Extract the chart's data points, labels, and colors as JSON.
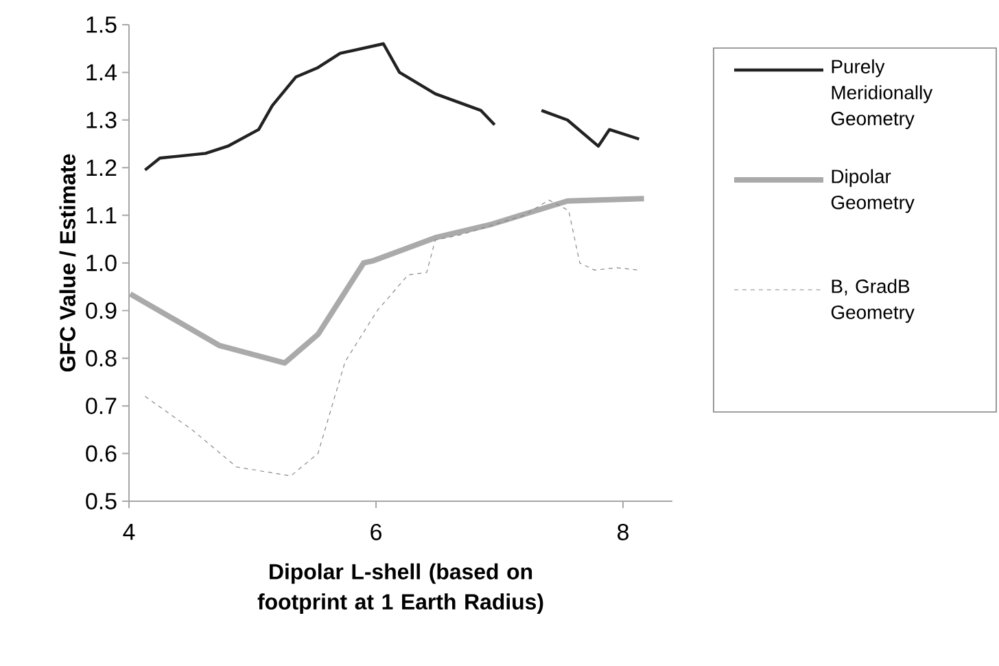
{
  "chart_data": {
    "type": "line",
    "xlabel": "Dipolar L-shell (based on footprint at 1 Earth Radius)",
    "ylabel": "GFC Value / Estimate",
    "xlim": [
      4,
      8.4
    ],
    "xticks": [
      4,
      6,
      8
    ],
    "ylim": [
      0.5,
      1.5
    ],
    "yticks": [
      0.5,
      0.6,
      0.7,
      0.8,
      0.9,
      {
        "value": 1.0,
        "label": "1.0"
      },
      1.1,
      1.2,
      1.3,
      1.4,
      1.5
    ],
    "grid": false,
    "legend": "right",
    "marker": "none",
    "series": [
      {
        "name": "Purely Meridionally Geometry",
        "color": "#222222",
        "line_style": "solid",
        "x": [
          4.13,
          4.25,
          4.62,
          4.8,
          5.05,
          5.16,
          5.35,
          5.53,
          5.71,
          6.06,
          6.19,
          6.48,
          6.85,
          6.96,
          7.15,
          7.34,
          7.55,
          7.8,
          7.89,
          8.13
        ],
        "values": [
          1.195,
          1.22,
          1.23,
          1.245,
          1.28,
          1.33,
          1.39,
          1.41,
          1.44,
          1.46,
          1.4,
          1.355,
          1.32,
          1.29,
          null,
          1.32,
          1.3,
          1.245,
          1.28,
          1.26
        ]
      },
      {
        "name": "Dipolar Geometry",
        "color": "#aaaaaa",
        "line_style": "solid",
        "x": [
          4.01,
          4.73,
          5.26,
          5.53,
          5.9,
          5.97,
          6.48,
          6.92,
          7.55,
          8.17
        ],
        "values": [
          0.935,
          0.827,
          0.79,
          0.85,
          1.0,
          1.004,
          1.053,
          1.08,
          1.13,
          1.135
        ]
      },
      {
        "name": "B, GradB Geometry",
        "color": "#888888",
        "line_style": "dashed",
        "x": [
          4.13,
          4.51,
          4.87,
          5.31,
          5.53,
          5.75,
          6.01,
          6.26,
          6.41,
          6.48,
          6.7,
          7.2,
          7.4,
          7.56,
          7.65,
          7.77,
          7.95,
          8.13
        ],
        "values": [
          0.72,
          0.65,
          0.572,
          0.553,
          0.6,
          0.793,
          0.9,
          0.975,
          0.98,
          1.048,
          1.06,
          1.1,
          1.132,
          1.11,
          1.0,
          0.985,
          0.99,
          0.985
        ]
      }
    ]
  }
}
